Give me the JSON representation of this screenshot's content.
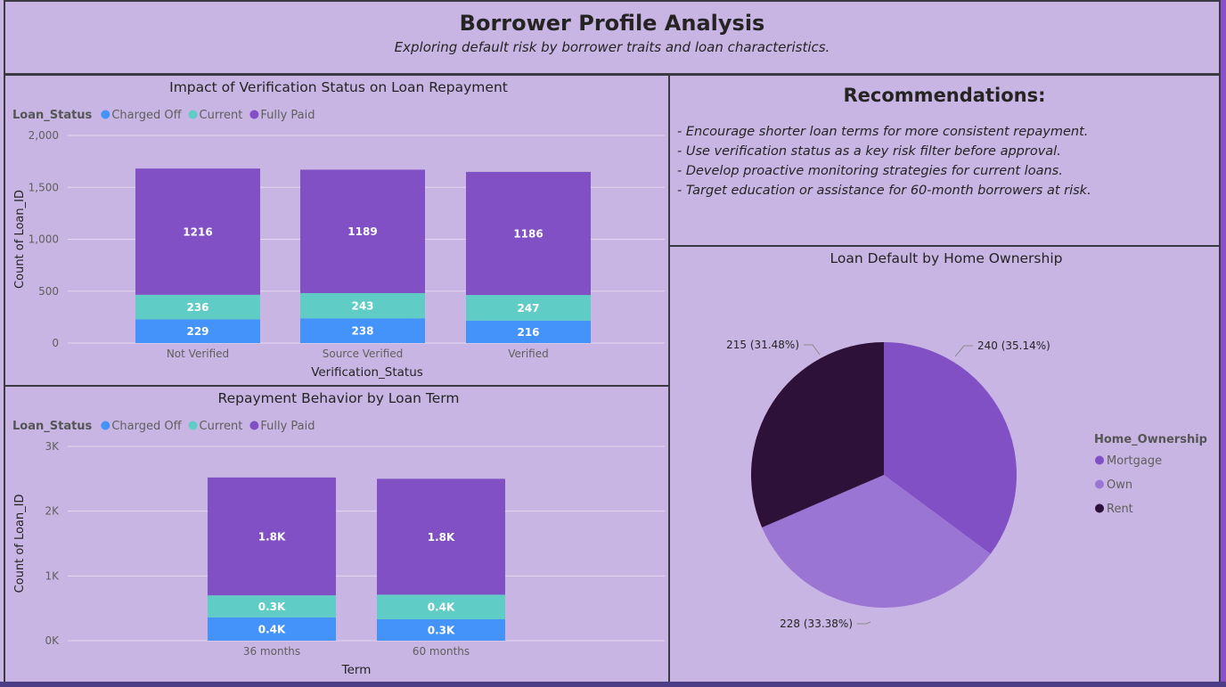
{
  "header": {
    "title": "Borrower Profile Analysis",
    "subtitle": "Exploring default risk by borrower traits and loan characteristics."
  },
  "recommendations": {
    "title": "Recommendations:",
    "items": [
      "- Encourage shorter loan terms for more consistent repayment.",
      "- Use verification status as a key risk filter before approval.",
      "- Develop proactive monitoring strategies for current loans.",
      "- Target education or assistance for 60-month borrowers at risk."
    ]
  },
  "colors": {
    "Charged Off": "#4393fb",
    "Current": "#5fcdc6",
    "Fully Paid": "#8150c4",
    "Mortgage": "#8150c4",
    "Own": "#9b75d3",
    "Rent": "#2e1138"
  },
  "chart_data": [
    {
      "type": "bar",
      "stacked": true,
      "title": "Impact of Verification Status on Loan Repayment",
      "legend_title": "Loan_Status",
      "legend_position": "top-left",
      "xlabel": "Verification_Status",
      "ylabel": "Count of Loan_ID",
      "ylim": [
        0,
        2000
      ],
      "yticks": [
        "0",
        "500",
        "1,000",
        "1,500",
        "2,000"
      ],
      "ytick_values": [
        0,
        500,
        1000,
        1500,
        2000
      ],
      "grid": true,
      "categories": [
        "Not Verified",
        "Source Verified",
        "Verified"
      ],
      "series": [
        {
          "name": "Charged Off",
          "values": [
            229,
            238,
            216
          ],
          "labels": [
            "229",
            "238",
            "216"
          ]
        },
        {
          "name": "Current",
          "values": [
            236,
            243,
            247
          ],
          "labels": [
            "236",
            "243",
            "247"
          ]
        },
        {
          "name": "Fully Paid",
          "values": [
            1216,
            1189,
            1186
          ],
          "labels": [
            "1216",
            "1189",
            "1186"
          ]
        }
      ]
    },
    {
      "type": "bar",
      "stacked": true,
      "title": "Repayment Behavior by Loan Term",
      "legend_title": "Loan_Status",
      "legend_position": "top-left",
      "xlabel": "Term",
      "ylabel": "Count of Loan_ID",
      "ylim": [
        0,
        3000
      ],
      "yticks": [
        "0K",
        "1K",
        "2K",
        "3K"
      ],
      "ytick_values": [
        0,
        1000,
        2000,
        3000
      ],
      "grid": true,
      "categories": [
        "36 months",
        "60 months"
      ],
      "series": [
        {
          "name": "Charged Off",
          "values": [
            360,
            330
          ],
          "labels": [
            "0.4K",
            "0.3K"
          ]
        },
        {
          "name": "Current",
          "values": [
            340,
            380
          ],
          "labels": [
            "0.3K",
            "0.4K"
          ]
        },
        {
          "name": "Fully Paid",
          "values": [
            1820,
            1790
          ],
          "labels": [
            "1.8K",
            "1.8K"
          ]
        }
      ]
    },
    {
      "type": "pie",
      "title": "Loan Default by Home Ownership",
      "legend_title": "Home_Ownership",
      "legend_position": "right",
      "categories": [
        "Mortgage",
        "Own",
        "Rent"
      ],
      "values": [
        240,
        228,
        215
      ],
      "labels": [
        "240 (35.14%)",
        "228 (33.38%)",
        "215 (31.48%)"
      ]
    }
  ]
}
